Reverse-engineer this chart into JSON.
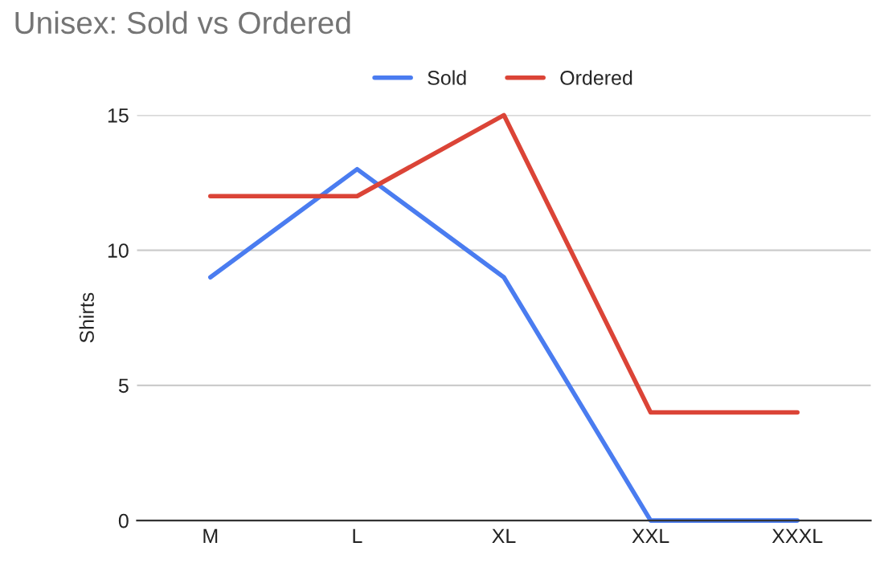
{
  "chart_data": {
    "type": "line",
    "title": "Unisex: Sold vs Ordered",
    "ylabel": "Shirts",
    "categories": [
      "M",
      "L",
      "XL",
      "XXL",
      "XXXL"
    ],
    "series": [
      {
        "name": "Sold",
        "color": "#4a7cf0",
        "values": [
          9,
          13,
          9,
          0,
          0
        ]
      },
      {
        "name": "Ordered",
        "color": "#db4437",
        "values": [
          12,
          12,
          15,
          4,
          4
        ]
      }
    ],
    "ylim": [
      0,
      15
    ],
    "yticks": [
      0,
      5,
      10,
      15
    ],
    "grid": "y",
    "legend": "top",
    "line_style": "solid"
  }
}
